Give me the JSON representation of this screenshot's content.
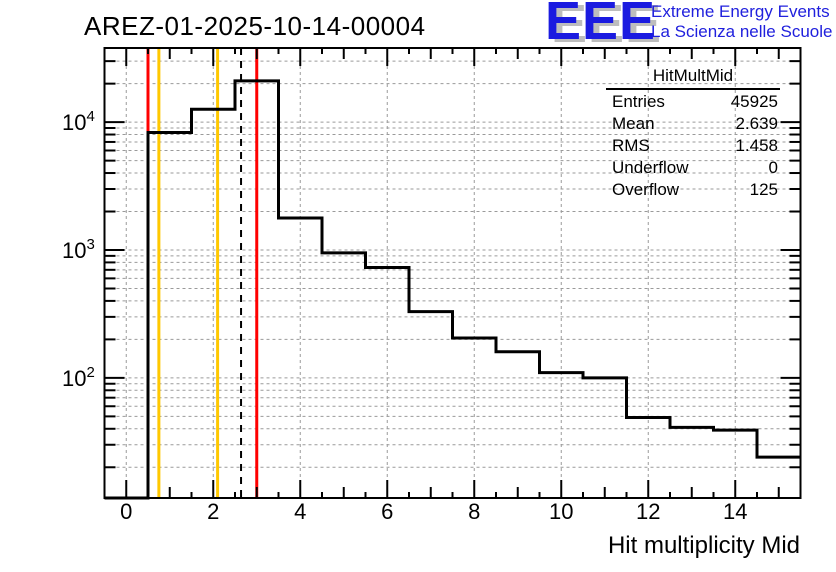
{
  "page_title": "AREZ-01-2025-10-14-00004",
  "logo": {
    "acronym": "EEE",
    "tagline_line1": "Extreme Energy Events",
    "tagline_line2": "La Scienza nelle Scuole",
    "blue": "#1b1be0",
    "shadow_gray": "#bdbdbd"
  },
  "stats_box": {
    "title": "HitMultMid",
    "rows": [
      {
        "label": "Entries",
        "value": "45925"
      },
      {
        "label": "Mean",
        "value": "2.639"
      },
      {
        "label": "RMS",
        "value": "1.458"
      },
      {
        "label": "Underflow",
        "value": "0"
      },
      {
        "label": "Overflow",
        "value": "125"
      }
    ]
  },
  "chart_data": {
    "type": "bar",
    "style": "step-histogram",
    "title": "AREZ-01-2025-10-14-00004",
    "xlabel": "Hit multiplicity Mid",
    "ylabel": "",
    "xlim": [
      -0.5,
      15.5
    ],
    "yscale": "log",
    "ylim": [
      11.5,
      38000
    ],
    "grid": true,
    "legend_position": "none",
    "bin_centers": [
      0,
      1,
      2,
      3,
      4,
      5,
      6,
      7,
      8,
      9,
      10,
      11,
      12,
      13,
      14,
      15
    ],
    "bin_width": 1,
    "values": [
      0,
      8300,
      12600,
      21000,
      1780,
      950,
      730,
      330,
      205,
      160,
      110,
      100,
      49,
      41,
      39,
      24
    ],
    "x_major_ticks": [
      0,
      2,
      4,
      6,
      8,
      10,
      12,
      14
    ],
    "x_tick_labels": [
      "0",
      "2",
      "4",
      "6",
      "8",
      "10",
      "12",
      "14"
    ],
    "y_decade_exponents": [
      2,
      3,
      4
    ],
    "marker_lines": [
      {
        "x": 0.5,
        "color": "#ff0000",
        "style": "solid"
      },
      {
        "x": 0.75,
        "color": "#ffc800",
        "style": "solid"
      },
      {
        "x": 2.1,
        "color": "#ffc800",
        "style": "solid"
      },
      {
        "x": 2.639,
        "color": "#000000",
        "style": "dashed"
      },
      {
        "x": 3.0,
        "color": "#ff0000",
        "style": "solid"
      }
    ],
    "colors": {
      "line": "#000000",
      "grid": "#9a9a9a",
      "frame": "#000000",
      "background": "#ffffff"
    }
  }
}
